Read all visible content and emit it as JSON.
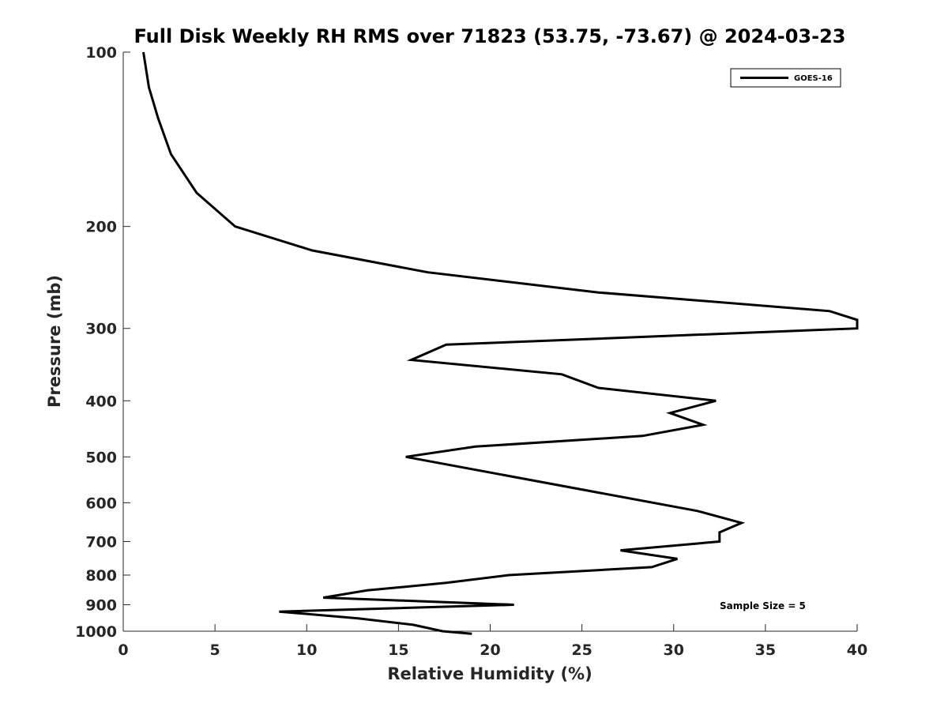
{
  "chart_data": {
    "type": "line",
    "title": "Full Disk Weekly RH RMS over 71823 (53.75, -73.67) @ 2024-03-23",
    "xlabel": "Relative Humidity (%)",
    "ylabel": "Pressure (mb)",
    "xlim": [
      0,
      40
    ],
    "ylim": [
      100,
      1000
    ],
    "y_scale": "log",
    "y_reversed": true,
    "grid": false,
    "legend_position": "top-right",
    "x_ticks": [
      "0",
      "5",
      "10",
      "15",
      "20",
      "25",
      "30",
      "35",
      "40"
    ],
    "y_ticks": [
      "100",
      "200",
      "300",
      "400",
      "500",
      "600",
      "700",
      "800",
      "900",
      "1000"
    ],
    "annotation": "Sample Size = 5",
    "series": [
      {
        "name": "GOES-16",
        "color": "#000000",
        "x": [
          1.1,
          1.4,
          1.9,
          2.6,
          4.0,
          6.1,
          10.3,
          16.6,
          25.9,
          38.5,
          40.0,
          40.0,
          17.6,
          15.7,
          23.9,
          25.9,
          32.3,
          29.8,
          31.6,
          28.3,
          19.2,
          15.4,
          31.3,
          33.7,
          32.5,
          32.5,
          27.1,
          30.2,
          28.8,
          21.0,
          17.6,
          13.3,
          10.9,
          21.3,
          8.5,
          12.8,
          15.8,
          17.4,
          19.0
        ],
        "y": [
          100,
          115,
          130,
          150,
          175,
          200,
          220,
          240,
          260,
          280,
          290,
          300,
          320,
          340,
          360,
          380,
          400,
          420,
          440,
          460,
          480,
          500,
          620,
          650,
          675,
          700,
          725,
          750,
          775,
          800,
          825,
          850,
          875,
          900,
          925,
          950,
          975,
          1000,
          1010
        ]
      }
    ]
  }
}
